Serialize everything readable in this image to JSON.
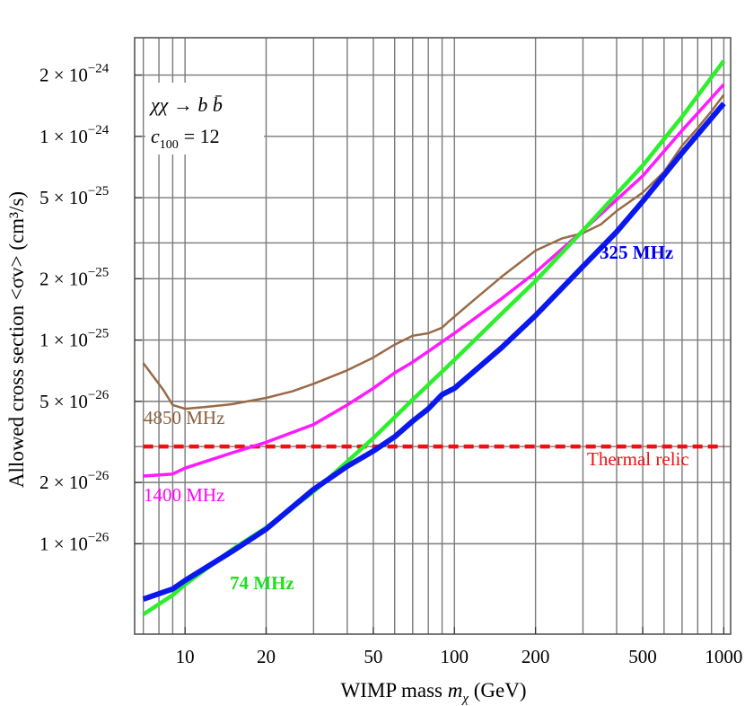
{
  "chart_data": {
    "type": "line",
    "xscale": "log",
    "yscale": "log",
    "xlabel": "WIMP mass m_χ (GeV)",
    "xlabel_parts": {
      "text": "WIMP mass ",
      "symbol": "m",
      "subscript": "χ",
      "unit": " (GeV)"
    },
    "ylabel": "Allowed cross section <σv> (cm³/s)",
    "xlim": [
      6.5,
      1060
    ],
    "ylim": [
      3.6e-27,
      3.05e-24
    ],
    "grid": true,
    "x_ticks": [
      {
        "value": 10,
        "label": "10"
      },
      {
        "value": 20,
        "label": "20"
      },
      {
        "value": 50,
        "label": "50"
      },
      {
        "value": 100,
        "label": "100"
      },
      {
        "value": 200,
        "label": "200"
      },
      {
        "value": 500,
        "label": "500"
      },
      {
        "value": 1000,
        "label": "1000"
      }
    ],
    "x_grid": [
      7,
      8,
      9,
      10,
      20,
      30,
      40,
      50,
      60,
      70,
      80,
      90,
      100,
      200,
      300,
      400,
      500,
      600,
      700,
      800,
      900,
      1000
    ],
    "y_ticks": [
      {
        "value": 1e-26,
        "mantissa": "1",
        "exponent": "−26"
      },
      {
        "value": 2e-26,
        "mantissa": "2",
        "exponent": "−26"
      },
      {
        "value": 5e-26,
        "mantissa": "5",
        "exponent": "−26"
      },
      {
        "value": 1e-25,
        "mantissa": "1",
        "exponent": "−25"
      },
      {
        "value": 2e-25,
        "mantissa": "2",
        "exponent": "−25"
      },
      {
        "value": 5e-25,
        "mantissa": "5",
        "exponent": "−25"
      },
      {
        "value": 1e-24,
        "mantissa": "1",
        "exponent": "−24"
      },
      {
        "value": 2e-24,
        "mantissa": "2",
        "exponent": "−24"
      }
    ],
    "y_grid": [
      1e-26,
      2e-26,
      3e-26,
      5e-26,
      1e-25,
      2e-25,
      3e-25,
      5e-25,
      1e-24,
      2e-24
    ],
    "annotation": {
      "channel": "χχ → b b̄",
      "param_symbol": "c",
      "param_subscript": "100",
      "param_value": "= 12"
    },
    "series": [
      {
        "name": "4850 MHz",
        "color": "#9a6a46",
        "width": 2.5,
        "dash": false,
        "label_color": "#8b5e3c",
        "points": [
          [
            7,
            7.7e-26
          ],
          [
            8.3,
            5.7e-26
          ],
          [
            9,
            4.8e-26
          ],
          [
            10,
            4.6e-26
          ],
          [
            12,
            4.7e-26
          ],
          [
            15,
            4.85e-26
          ],
          [
            20,
            5.2e-26
          ],
          [
            25,
            5.6e-26
          ],
          [
            30,
            6.1e-26
          ],
          [
            40,
            7.1e-26
          ],
          [
            50,
            8.2e-26
          ],
          [
            60,
            9.5e-26
          ],
          [
            70,
            1.05e-25
          ],
          [
            80,
            1.08e-25
          ],
          [
            90,
            1.15e-25
          ],
          [
            95,
            1.23e-25
          ],
          [
            120,
            1.6e-25
          ],
          [
            150,
            2.05e-25
          ],
          [
            200,
            2.75e-25
          ],
          [
            250,
            3.15e-25
          ],
          [
            300,
            3.35e-25
          ],
          [
            350,
            3.7e-25
          ],
          [
            400,
            4.3e-25
          ],
          [
            500,
            5.3e-25
          ],
          [
            600,
            6.7e-25
          ],
          [
            700,
            9e-25
          ],
          [
            800,
            1.1e-24
          ],
          [
            900,
            1.33e-24
          ],
          [
            1000,
            1.6e-24
          ]
        ]
      },
      {
        "name": "1400 MHz",
        "color": "#ff1aff",
        "width": 3.5,
        "dash": false,
        "label_color": "#ff00ff",
        "points": [
          [
            7,
            2.15e-26
          ],
          [
            9,
            2.2e-26
          ],
          [
            10,
            2.35e-26
          ],
          [
            15,
            2.8e-26
          ],
          [
            20,
            3.15e-26
          ],
          [
            30,
            3.85e-26
          ],
          [
            40,
            4.8e-26
          ],
          [
            50,
            5.8e-26
          ],
          [
            60,
            6.9e-26
          ],
          [
            70,
            7.8e-26
          ],
          [
            80,
            8.8e-26
          ],
          [
            100,
            1.08e-25
          ],
          [
            150,
            1.6e-25
          ],
          [
            200,
            2.15e-25
          ],
          [
            300,
            3.45e-25
          ],
          [
            500,
            6.4e-25
          ],
          [
            700,
            1.07e-24
          ],
          [
            1000,
            1.8e-24
          ]
        ]
      },
      {
        "name": "74 MHz",
        "color": "#2bf02b",
        "width": 4.5,
        "dash": false,
        "label_color": "#22dd22",
        "points": [
          [
            7,
            4.5e-27
          ],
          [
            9,
            5.6e-27
          ],
          [
            10,
            6.3e-27
          ],
          [
            15,
            9.4e-27
          ],
          [
            20,
            1.2e-26
          ],
          [
            30,
            1.8e-26
          ],
          [
            50,
            3.3e-26
          ],
          [
            70,
            5.1e-26
          ],
          [
            100,
            8e-26
          ],
          [
            150,
            1.35e-25
          ],
          [
            200,
            1.95e-25
          ],
          [
            300,
            3.45e-25
          ],
          [
            500,
            7.2e-25
          ],
          [
            700,
            1.25e-24
          ],
          [
            1000,
            2.35e-24
          ]
        ]
      },
      {
        "name": "325 MHz",
        "color": "#0a18ee",
        "width": 6,
        "dash": false,
        "label_color": "#0000ee",
        "points": [
          [
            7,
            5.35e-27
          ],
          [
            9,
            6e-27
          ],
          [
            10,
            6.6e-27
          ],
          [
            15,
            9.2e-27
          ],
          [
            20,
            1.18e-26
          ],
          [
            30,
            1.85e-26
          ],
          [
            40,
            2.4e-26
          ],
          [
            50,
            2.85e-26
          ],
          [
            60,
            3.35e-26
          ],
          [
            70,
            4e-26
          ],
          [
            80,
            4.6e-26
          ],
          [
            90,
            5.4e-26
          ],
          [
            100,
            5.8e-26
          ],
          [
            150,
            9.2e-26
          ],
          [
            200,
            1.32e-25
          ],
          [
            300,
            2.3e-25
          ],
          [
            400,
            3.4e-25
          ],
          [
            500,
            4.8e-25
          ],
          [
            700,
            8.3e-25
          ],
          [
            1000,
            1.45e-24
          ]
        ]
      }
    ],
    "reference_lines": [
      {
        "name": "Thermal relic",
        "value": 3e-26,
        "color": "#ee1111",
        "dash": true
      }
    ],
    "labels": {
      "brown": "4850 MHz",
      "magenta": "1400 MHz",
      "green": "74 MHz",
      "blue": "325 MHz",
      "thermal": "Thermal relic"
    }
  }
}
